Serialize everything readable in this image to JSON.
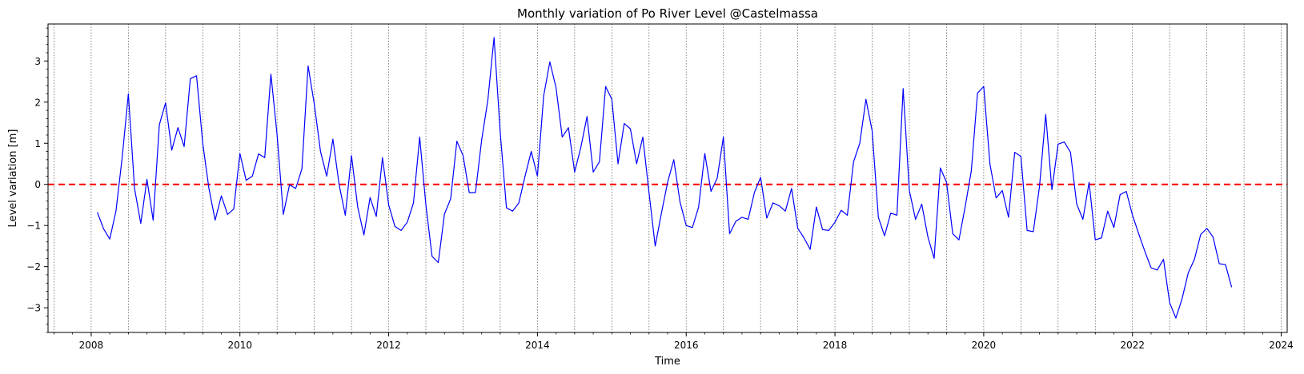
{
  "chart_data": {
    "type": "line",
    "title": "Monthly variation of Po River Level @Castelmassa",
    "xlabel": "Time",
    "ylabel": "Level variation [m]",
    "xlim": [
      2007.42,
      2024.08
    ],
    "ylim": [
      -3.6,
      3.9
    ],
    "x_ticks": [
      "2008",
      "2010",
      "2012",
      "2014",
      "2016",
      "2018",
      "2020",
      "2022",
      "2024"
    ],
    "y_ticks": [
      "−3",
      "−2",
      "−1",
      "0",
      "1",
      "2",
      "3"
    ],
    "grid": "vertical dotted lines at each half year",
    "reference_line": {
      "y": 0,
      "style": "dashed",
      "color": "#ff0000"
    },
    "colors": {
      "series": "#0000ff",
      "reference": "#ff0000",
      "grid": "#555555"
    },
    "series": [
      {
        "x_start": "2008-02",
        "interval": "monthly",
        "values": [
          -0.68,
          -1.08,
          -1.33,
          -0.65,
          0.65,
          2.2,
          -0.1,
          -0.95,
          0.12,
          -0.87,
          1.45,
          1.98,
          0.83,
          1.38,
          0.92,
          2.57,
          2.64,
          1.0,
          -0.1,
          -0.87,
          -0.28,
          -0.73,
          -0.6,
          0.75,
          0.1,
          0.2,
          0.74,
          0.65,
          2.68,
          1.2,
          -0.73,
          -0.01,
          -0.1,
          0.38,
          2.88,
          1.95,
          0.8,
          0.2,
          1.1,
          0.0,
          -0.75,
          0.7,
          -0.55,
          -1.23,
          -0.32,
          -0.78,
          0.65,
          -0.5,
          -1.02,
          -1.12,
          -0.92,
          -0.45,
          1.15,
          -0.5,
          -1.75,
          -1.9,
          -0.72,
          -0.35,
          1.05,
          0.7,
          -0.2,
          -0.2,
          1.08,
          2.05,
          3.57,
          1.25,
          -0.57,
          -0.65,
          -0.45,
          0.2,
          0.8,
          0.2,
          2.15,
          2.98,
          2.35,
          1.15,
          1.38,
          0.3,
          0.9,
          1.65,
          0.3,
          0.55,
          2.38,
          2.07,
          0.5,
          1.48,
          1.35,
          0.5,
          1.15,
          -0.2,
          -1.5,
          -0.7,
          0.05,
          0.6,
          -0.43,
          -1.0,
          -1.05,
          -0.55,
          0.75,
          -0.17,
          0.15,
          1.15,
          -1.2,
          -0.9,
          -0.8,
          -0.85,
          -0.2,
          0.17,
          -0.82,
          -0.45,
          -0.52,
          -0.65,
          -0.1,
          -1.07,
          -1.3,
          -1.58,
          -0.55,
          -1.1,
          -1.12,
          -0.92,
          -0.63,
          -0.75,
          0.55,
          1.0,
          2.07,
          1.3,
          -0.8,
          -1.25,
          -0.7,
          -0.75,
          2.33,
          -0.15,
          -0.85,
          -0.48,
          -1.28,
          -1.8,
          0.4,
          0.05,
          -1.2,
          -1.35,
          -0.55,
          0.33,
          2.22,
          2.38,
          0.5,
          -0.33,
          -0.15,
          -0.8,
          0.78,
          0.68,
          -1.12,
          -1.15,
          -0.05,
          1.7,
          -0.13,
          0.98,
          1.03,
          0.78,
          -0.48,
          -0.85,
          0.05,
          -1.35,
          -1.3,
          -0.65,
          -1.05,
          -0.25,
          -0.17,
          -0.75,
          -1.2,
          -1.63,
          -2.03,
          -2.08,
          -1.82,
          -2.88,
          -3.25,
          -2.78,
          -2.15,
          -1.82,
          -1.22,
          -1.07,
          -1.28,
          -1.93,
          -1.95,
          -2.5
        ]
      }
    ]
  }
}
